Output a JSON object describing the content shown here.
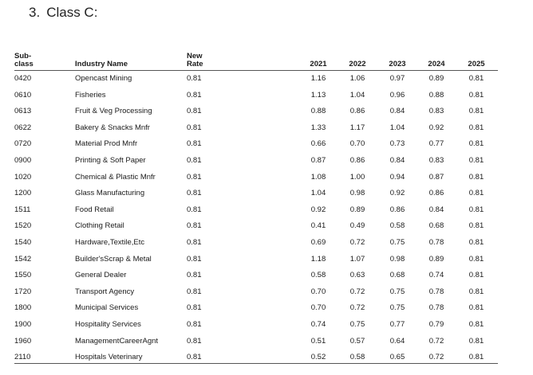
{
  "heading": {
    "number": "3.",
    "text": "Class C:"
  },
  "table": {
    "headers": {
      "subclass_line1": "Sub-",
      "subclass_line2": "class",
      "industry": "Industry Name",
      "rate_line1": "New",
      "rate_line2": "Rate",
      "y2021": "2021",
      "y2022": "2022",
      "y2023": "2023",
      "y2024": "2024",
      "y2025": "2025"
    },
    "rows": [
      [
        "0420",
        "Opencast Mining",
        "0.81",
        "1.16",
        "1.06",
        "0.97",
        "0.89",
        "0.81"
      ],
      [
        "0610",
        "Fisheries",
        "0.81",
        "1.13",
        "1.04",
        "0.96",
        "0.88",
        "0.81"
      ],
      [
        "0613",
        "Fruit & Veg Processing",
        "0.81",
        "0.88",
        "0.86",
        "0.84",
        "0.83",
        "0.81"
      ],
      [
        "0622",
        "Bakery & Snacks Mnfr",
        "0.81",
        "1.33",
        "1.17",
        "1.04",
        "0.92",
        "0.81"
      ],
      [
        "0720",
        "Material Prod Mnfr",
        "0.81",
        "0.66",
        "0.70",
        "0.73",
        "0.77",
        "0.81"
      ],
      [
        "0900",
        "Printing & Soft Paper",
        "0.81",
        "0.87",
        "0.86",
        "0.84",
        "0.83",
        "0.81"
      ],
      [
        "1020",
        "Chemical & Plastic Mnfr",
        "0.81",
        "1.08",
        "1.00",
        "0.94",
        "0.87",
        "0.81"
      ],
      [
        "1200",
        "Glass Manufacturing",
        "0.81",
        "1.04",
        "0.98",
        "0.92",
        "0.86",
        "0.81"
      ],
      [
        "1511",
        "Food Retail",
        "0.81",
        "0.92",
        "0.89",
        "0.86",
        "0.84",
        "0.81"
      ],
      [
        "1520",
        "Clothing Retail",
        "0.81",
        "0.41",
        "0.49",
        "0.58",
        "0.68",
        "0.81"
      ],
      [
        "1540",
        "Hardware,Textile,Etc",
        "0.81",
        "0.69",
        "0.72",
        "0.75",
        "0.78",
        "0.81"
      ],
      [
        "1542",
        "Builder'sScrap & Metal",
        "0.81",
        "1.18",
        "1.07",
        "0.98",
        "0.89",
        "0.81"
      ],
      [
        "1550",
        "General Dealer",
        "0.81",
        "0.58",
        "0.63",
        "0.68",
        "0.74",
        "0.81"
      ],
      [
        "1720",
        "Transport Agency",
        "0.81",
        "0.70",
        "0.72",
        "0.75",
        "0.78",
        "0.81"
      ],
      [
        "1800",
        "Municipal Services",
        "0.81",
        "0.70",
        "0.72",
        "0.75",
        "0.78",
        "0.81"
      ],
      [
        "1900",
        "Hospitality Services",
        "0.81",
        "0.74",
        "0.75",
        "0.77",
        "0.79",
        "0.81"
      ],
      [
        "1960",
        "ManagementCareerAgnt",
        "0.81",
        "0.51",
        "0.57",
        "0.64",
        "0.72",
        "0.81"
      ],
      [
        "2110",
        "Hospitals Veterinary",
        "0.81",
        "0.52",
        "0.58",
        "0.65",
        "0.72",
        "0.81"
      ]
    ]
  }
}
